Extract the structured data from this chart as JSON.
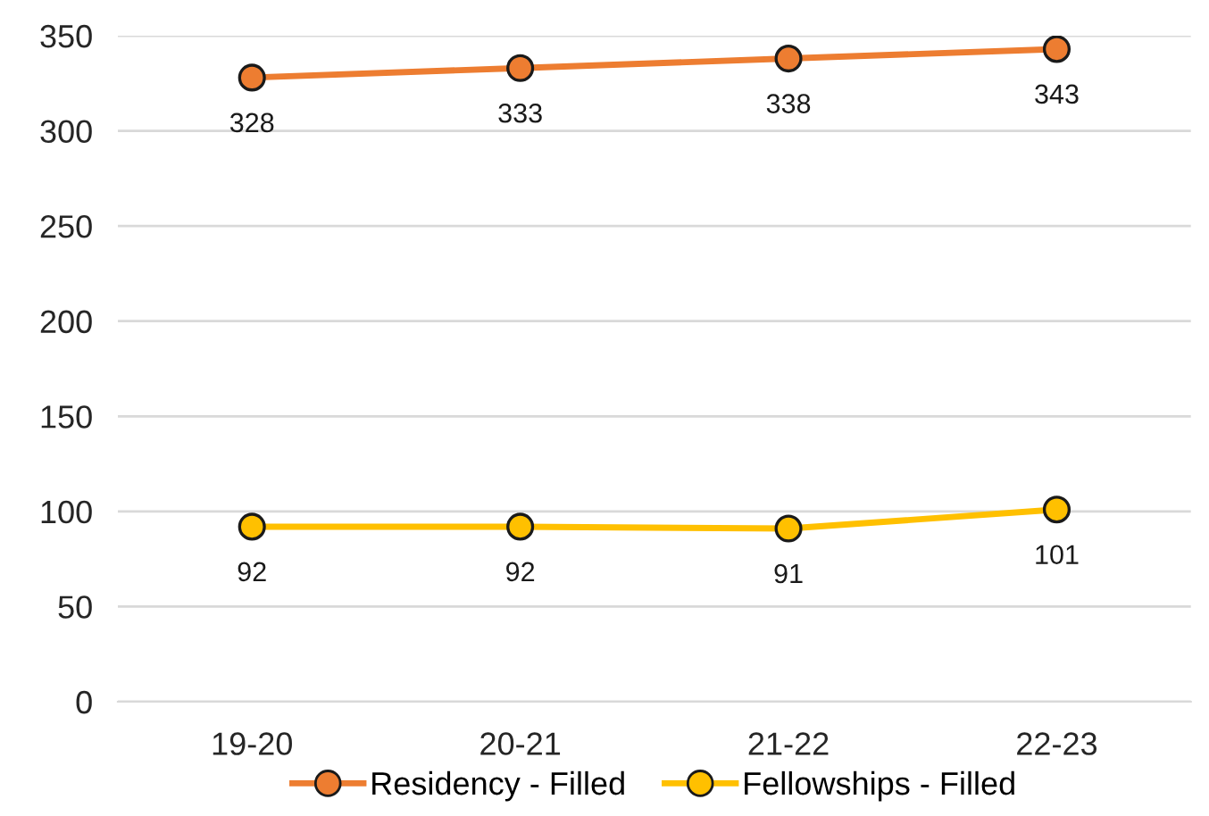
{
  "chart_data": {
    "type": "line",
    "categories": [
      "19-20",
      "20-21",
      "21-22",
      "22-23"
    ],
    "series": [
      {
        "name": "Residency - Filled",
        "color": "#ed7d31",
        "values": [
          328,
          333,
          338,
          343
        ]
      },
      {
        "name": "Fellowships - Filled",
        "color": "#ffc000",
        "values": [
          92,
          92,
          91,
          101
        ]
      }
    ],
    "ylim": [
      0,
      350
    ],
    "yticks": [
      0,
      50,
      100,
      150,
      200,
      250,
      300,
      350
    ],
    "grid": "y",
    "legend": "bottom",
    "marker": "circle",
    "line_style": "solid",
    "data_labels": true
  }
}
